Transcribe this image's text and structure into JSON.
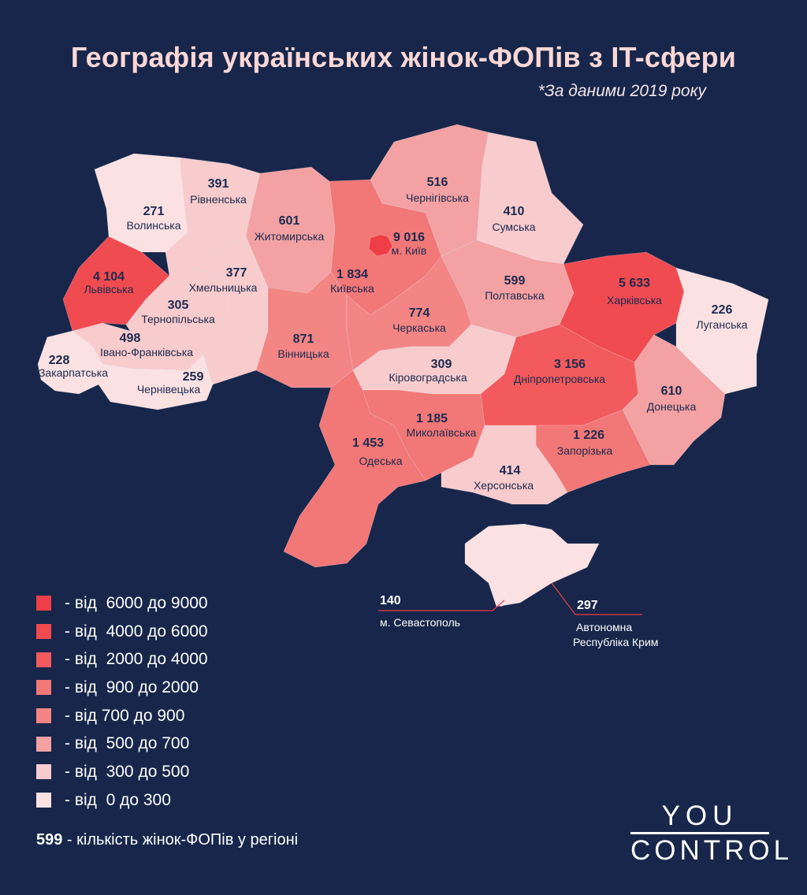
{
  "title": "Географія українських жінок-ФОПів з IT-сфери",
  "subtitle": "*За даними 2019 року",
  "colors": {
    "background": "#17264a",
    "tier_6000_9000": "#ef3e47",
    "tier_4000_6000": "#f04b51",
    "tier_2000_4000": "#f25a5d",
    "tier_900_2000": "#f27777",
    "tier_700_900": "#f38585",
    "tier_500_700": "#f3a1a3",
    "tier_300_500": "#f8cbcd",
    "tier_0_300": "#fbe1e2"
  },
  "regions": [
    {
      "id": "volynska",
      "name": "Волинська",
      "value": "271",
      "tier": "tier_0_300"
    },
    {
      "id": "rivnenska",
      "name": "Рівненська",
      "value": "391",
      "tier": "tier_300_500"
    },
    {
      "id": "zhytomyrska",
      "name": "Житомирська",
      "value": "601",
      "tier": "tier_500_700"
    },
    {
      "id": "kyivska",
      "name": "Київська",
      "value": "1 834",
      "tier": "tier_900_2000"
    },
    {
      "id": "kyiv",
      "name": "м. Київ",
      "value": "9 016",
      "tier": "tier_6000_9000"
    },
    {
      "id": "chernihivska",
      "name": "Чернігівська",
      "value": "516",
      "tier": "tier_500_700"
    },
    {
      "id": "sumska",
      "name": "Сумська",
      "value": "410",
      "tier": "tier_300_500"
    },
    {
      "id": "lvivska",
      "name": "Львівська",
      "value": "4 104",
      "tier": "tier_4000_6000"
    },
    {
      "id": "khmelnytska",
      "name": "Хмельницька",
      "value": "377",
      "tier": "tier_300_500"
    },
    {
      "id": "ternopilska",
      "name": "Тернопільська",
      "value": "305",
      "tier": "tier_300_500"
    },
    {
      "id": "ivanofrankivska",
      "name": "Івано-Франківська",
      "value": "498",
      "tier": "tier_300_500"
    },
    {
      "id": "zakarpatska",
      "name": "Закарпатська",
      "value": "228",
      "tier": "tier_0_300"
    },
    {
      "id": "chernivetska",
      "name": "Чернівецька",
      "value": "259",
      "tier": "tier_0_300"
    },
    {
      "id": "vinnytska",
      "name": "Вінницька",
      "value": "871",
      "tier": "tier_700_900"
    },
    {
      "id": "cherkaska",
      "name": "Черкаська",
      "value": "774",
      "tier": "tier_700_900"
    },
    {
      "id": "poltavska",
      "name": "Полтавська",
      "value": "599",
      "tier": "tier_500_700"
    },
    {
      "id": "kharkivska",
      "name": "Харківська",
      "value": "5 633",
      "tier": "tier_4000_6000"
    },
    {
      "id": "luhanska",
      "name": "Луганська",
      "value": "226",
      "tier": "tier_0_300"
    },
    {
      "id": "kirovohradska",
      "name": "Кіровоградська",
      "value": "309",
      "tier": "tier_300_500"
    },
    {
      "id": "dnipropetrovska",
      "name": "Дніпропетровська",
      "value": "3 156",
      "tier": "tier_2000_4000"
    },
    {
      "id": "donetska",
      "name": "Донецька",
      "value": "610",
      "tier": "tier_500_700"
    },
    {
      "id": "odeska",
      "name": "Одеська",
      "value": "1 453",
      "tier": "tier_900_2000"
    },
    {
      "id": "mykolaivska",
      "name": "Миколаївська",
      "value": "1 185",
      "tier": "tier_900_2000"
    },
    {
      "id": "zaporizka",
      "name": "Запорізька",
      "value": "1 226",
      "tier": "tier_900_2000"
    },
    {
      "id": "khersonska",
      "name": "Херсонська",
      "value": "414",
      "tier": "tier_300_500"
    },
    {
      "id": "krym",
      "name": "Автономна Республіка Крим",
      "value": "297",
      "tier": "tier_0_300"
    },
    {
      "id": "sevastopol",
      "name": "м. Севастополь",
      "value": "140",
      "tier": "tier_0_300"
    }
  ],
  "annotations": {
    "sevastopol": {
      "value": "140",
      "name": "м. Севастополь"
    },
    "krym": {
      "value": "297",
      "name_line1": "Автономна",
      "name_line2": "Республіка Крим"
    }
  },
  "legend": [
    {
      "label": "- від  6000 до 9000",
      "tier": "tier_6000_9000"
    },
    {
      "label": "- від  4000 до 6000",
      "tier": "tier_4000_6000"
    },
    {
      "label": "- від  2000 до 4000",
      "tier": "tier_2000_4000"
    },
    {
      "label": "- від  900 до 2000",
      "tier": "tier_900_2000"
    },
    {
      "label": "- від 700 до 900",
      "tier": "tier_700_900"
    },
    {
      "label": "- від  500 до 700",
      "tier": "tier_500_700"
    },
    {
      "label": "- від  300 до 500",
      "tier": "tier_300_500"
    },
    {
      "label": "- від  0 до 300",
      "tier": "tier_0_300"
    }
  ],
  "note": {
    "number": "599",
    "text": " - кількість жінок-ФОПів у регіоні"
  },
  "logo": {
    "line1": "YOU",
    "line2": "CONTROL"
  }
}
